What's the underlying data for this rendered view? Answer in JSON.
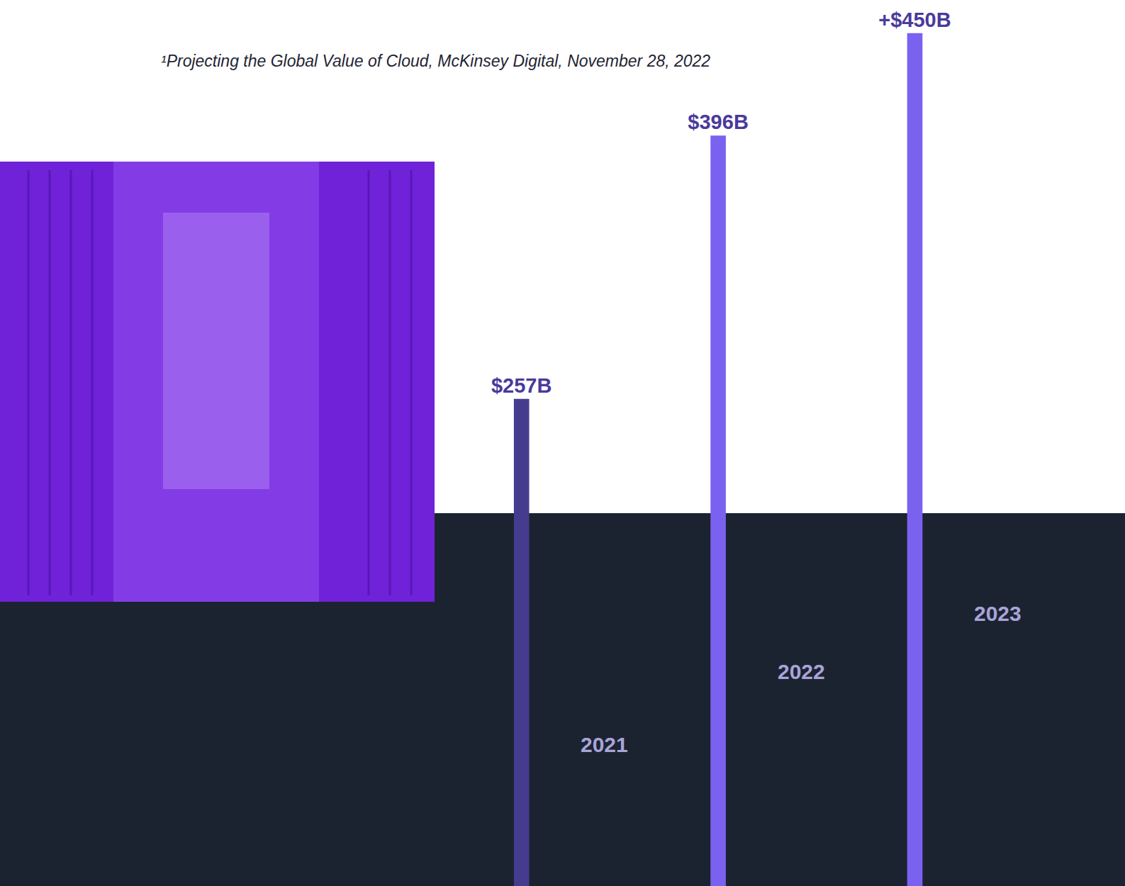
{
  "chart_data": {
    "type": "bar",
    "footnote": "¹Projecting the Global Value of Cloud, McKinsey Digital, November 28, 2022",
    "categories": [
      "2021",
      "2022",
      "2023"
    ],
    "values": [
      257,
      396,
      450
    ],
    "value_labels": [
      "$257B",
      "$396B",
      "+$450B"
    ],
    "colors": [
      "#463c8f",
      "#7b61f0",
      "#7b61f0"
    ],
    "ylim": [
      0,
      460
    ],
    "data_labels": true,
    "grid": false
  }
}
